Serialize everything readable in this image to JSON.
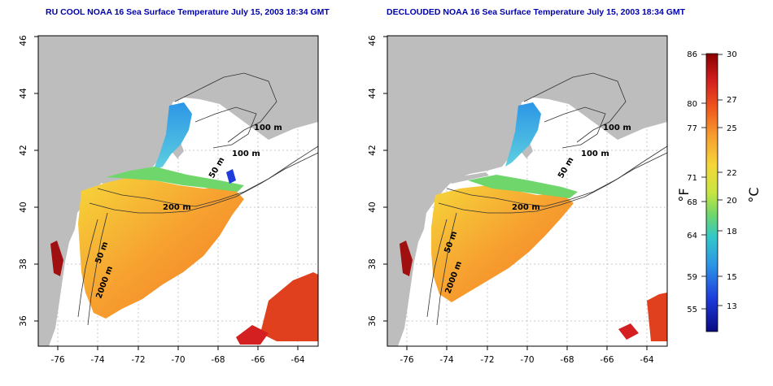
{
  "maps": [
    {
      "title": "RU COOL NOAA 16 Sea Surface Temperature July 15, 2003 18:34 GMT",
      "x_ticks": [
        "-76",
        "-74",
        "-72",
        "-70",
        "-68",
        "-66",
        "-64"
      ],
      "y_ticks": [
        "46",
        "44",
        "42",
        "40",
        "38",
        "36"
      ],
      "contour_labels": [
        "100 m",
        "100 m",
        "50 m",
        "200 m",
        "50 m",
        "2000 m"
      ]
    },
    {
      "title": "DECLOUDED NOAA 16 Sea Surface Temperature July 15, 2003 18:34 GMT",
      "x_ticks": [
        "-76",
        "-74",
        "-72",
        "-70",
        "-68",
        "-66",
        "-64"
      ],
      "y_ticks": [
        "46",
        "44",
        "42",
        "40",
        "38",
        "36"
      ],
      "contour_labels": [
        "100 m",
        "100 m",
        "50 m",
        "200 m",
        "50 m",
        "2000 m"
      ]
    }
  ],
  "colorbar": {
    "fahrenheit_unit": "°F",
    "celsius_unit": "°C",
    "fahrenheit_ticks": [
      "86",
      "80",
      "77",
      "71",
      "68",
      "64",
      "59",
      "55"
    ],
    "celsius_ticks": [
      "30",
      "27",
      "25",
      "22",
      "20",
      "18",
      "15",
      "13"
    ],
    "colors": [
      "#8b0000",
      "#d42020",
      "#f05a1e",
      "#f7a030",
      "#f5d63a",
      "#c8e641",
      "#6fd66b",
      "#32c8c8",
      "#2c96e6",
      "#1e3cdc",
      "#0a0a82"
    ]
  }
}
